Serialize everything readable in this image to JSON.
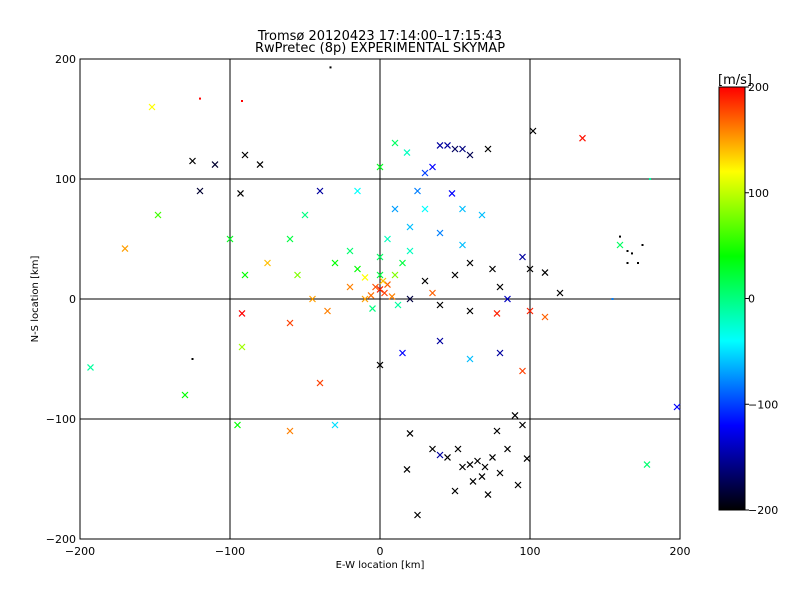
{
  "chart_data": {
    "type": "scatter",
    "title": "Tromsø 20120423 17:14:00–17:15:43",
    "subtitle": "RwPretec (8p) EXPERIMENTAL SKYMAP",
    "xlabel": "E-W location [km]",
    "ylabel": "N-S location [km]",
    "xlim": [
      -200,
      200
    ],
    "ylim": [
      -200,
      200
    ],
    "x_ticks": [
      "−200",
      "−100",
      "0",
      "100",
      "200"
    ],
    "y_ticks": [
      "−200",
      "−100",
      "0",
      "100",
      "200"
    ],
    "grid": true,
    "colorbar": {
      "unit": "[m/s]",
      "range": [
        -200,
        200
      ],
      "ticks": [
        "200",
        "100",
        "0",
        "−100",
        "−200"
      ],
      "colors": [
        "#ff0000",
        "#ffff00",
        "#00ff00",
        "#00ffff",
        "#0000ff",
        "#000000"
      ]
    },
    "point_markers": [
      "dot",
      "x"
    ],
    "points": [
      {
        "x": 0,
        "y": 8,
        "v": 190,
        "m": "x"
      },
      {
        "x": 3,
        "y": 5,
        "v": 180,
        "m": "x"
      },
      {
        "x": -3,
        "y": 10,
        "v": 175,
        "m": "x"
      },
      {
        "x": 5,
        "y": 12,
        "v": 170,
        "m": "x"
      },
      {
        "x": -6,
        "y": 3,
        "v": 165,
        "m": "x"
      },
      {
        "x": 8,
        "y": 2,
        "v": 160,
        "m": "x"
      },
      {
        "x": 2,
        "y": 15,
        "v": 140,
        "m": "x"
      },
      {
        "x": -10,
        "y": 18,
        "v": 120,
        "m": "x"
      },
      {
        "x": 10,
        "y": 20,
        "v": 80,
        "m": "x"
      },
      {
        "x": -15,
        "y": 25,
        "v": 40,
        "m": "x"
      },
      {
        "x": 15,
        "y": 30,
        "v": 20,
        "m": "x"
      },
      {
        "x": 0,
        "y": 35,
        "v": 10,
        "m": "x"
      },
      {
        "x": -20,
        "y": 40,
        "v": 5,
        "m": "x"
      },
      {
        "x": 5,
        "y": 50,
        "v": -20,
        "m": "x"
      },
      {
        "x": 20,
        "y": 60,
        "v": -60,
        "m": "x"
      },
      {
        "x": 10,
        "y": 75,
        "v": -70,
        "m": "x"
      },
      {
        "x": 25,
        "y": 90,
        "v": -80,
        "m": "x"
      },
      {
        "x": 35,
        "y": 110,
        "v": -120,
        "m": "x"
      },
      {
        "x": 40,
        "y": 128,
        "v": -150,
        "m": "x"
      },
      {
        "x": 45,
        "y": 128,
        "v": -150,
        "m": "x"
      },
      {
        "x": 50,
        "y": 125,
        "v": -170,
        "m": "x"
      },
      {
        "x": 55,
        "y": 125,
        "v": -160,
        "m": "x"
      },
      {
        "x": 60,
        "y": 120,
        "v": -175,
        "m": "x"
      },
      {
        "x": 72,
        "y": 125,
        "v": -200,
        "m": "x"
      },
      {
        "x": 102,
        "y": 140,
        "v": -200,
        "m": "x"
      },
      {
        "x": 135,
        "y": 134,
        "v": 195,
        "m": "x"
      },
      {
        "x": -152,
        "y": 160,
        "v": 120,
        "m": "x"
      },
      {
        "x": -125,
        "y": 115,
        "v": -200,
        "m": "x"
      },
      {
        "x": -110,
        "y": 112,
        "v": -185,
        "m": "x"
      },
      {
        "x": -90,
        "y": 120,
        "v": -200,
        "m": "x"
      },
      {
        "x": -80,
        "y": 112,
        "v": -200,
        "m": "x"
      },
      {
        "x": -93,
        "y": 88,
        "v": -200,
        "m": "x"
      },
      {
        "x": -120,
        "y": 90,
        "v": -185,
        "m": "x"
      },
      {
        "x": -148,
        "y": 70,
        "v": 60,
        "m": "x"
      },
      {
        "x": -170,
        "y": 42,
        "v": 150,
        "m": "x"
      },
      {
        "x": -90,
        "y": 20,
        "v": 40,
        "m": "x"
      },
      {
        "x": -75,
        "y": 30,
        "v": 140,
        "m": "x"
      },
      {
        "x": -55,
        "y": 20,
        "v": 80,
        "m": "x"
      },
      {
        "x": -45,
        "y": 0,
        "v": 150,
        "m": "x"
      },
      {
        "x": -35,
        "y": -10,
        "v": 160,
        "m": "x"
      },
      {
        "x": -92,
        "y": -12,
        "v": 200,
        "m": "x"
      },
      {
        "x": -92,
        "y": -40,
        "v": 90,
        "m": "x"
      },
      {
        "x": -40,
        "y": -70,
        "v": 180,
        "m": "x"
      },
      {
        "x": -60,
        "y": -110,
        "v": 160,
        "m": "x"
      },
      {
        "x": -95,
        "y": -105,
        "v": 40,
        "m": "x"
      },
      {
        "x": -130,
        "y": -80,
        "v": 40,
        "m": "x"
      },
      {
        "x": -193,
        "y": -57,
        "v": -10,
        "m": "x"
      },
      {
        "x": -30,
        "y": -105,
        "v": -50,
        "m": "x"
      },
      {
        "x": 0,
        "y": -55,
        "v": -200,
        "m": "x"
      },
      {
        "x": 15,
        "y": -45,
        "v": -120,
        "m": "x"
      },
      {
        "x": 40,
        "y": -35,
        "v": -150,
        "m": "x"
      },
      {
        "x": 60,
        "y": -50,
        "v": -60,
        "m": "x"
      },
      {
        "x": 80,
        "y": -45,
        "v": -150,
        "m": "x"
      },
      {
        "x": 95,
        "y": -60,
        "v": 180,
        "m": "x"
      },
      {
        "x": 110,
        "y": -15,
        "v": 170,
        "m": "x"
      },
      {
        "x": 120,
        "y": 5,
        "v": -200,
        "m": "x"
      },
      {
        "x": 100,
        "y": 25,
        "v": -200,
        "m": "x"
      },
      {
        "x": 110,
        "y": 22,
        "v": -200,
        "m": "x"
      },
      {
        "x": 95,
        "y": 35,
        "v": -150,
        "m": "x"
      },
      {
        "x": 80,
        "y": 10,
        "v": -200,
        "m": "x"
      },
      {
        "x": 75,
        "y": 25,
        "v": -200,
        "m": "x"
      },
      {
        "x": 60,
        "y": 30,
        "v": -200,
        "m": "x"
      },
      {
        "x": 50,
        "y": 20,
        "v": -200,
        "m": "x"
      },
      {
        "x": 30,
        "y": 15,
        "v": -200,
        "m": "x"
      },
      {
        "x": 20,
        "y": 0,
        "v": -180,
        "m": "x"
      },
      {
        "x": 85,
        "y": 0,
        "v": -140,
        "m": "x"
      },
      {
        "x": 78,
        "y": -12,
        "v": 190,
        "m": "x"
      },
      {
        "x": 100,
        "y": -10,
        "v": 190,
        "m": "x"
      },
      {
        "x": 60,
        "y": -10,
        "v": -200,
        "m": "x"
      },
      {
        "x": 40,
        "y": -5,
        "v": -200,
        "m": "x"
      },
      {
        "x": 35,
        "y": 5,
        "v": 170,
        "m": "x"
      },
      {
        "x": 160,
        "y": 45,
        "v": 10,
        "m": "x"
      },
      {
        "x": 178,
        "y": -138,
        "v": 5,
        "m": "x"
      },
      {
        "x": 198,
        "y": -90,
        "v": -120,
        "m": "x"
      },
      {
        "x": 20,
        "y": -112,
        "v": -200,
        "m": "x"
      },
      {
        "x": 35,
        "y": -125,
        "v": -200,
        "m": "x"
      },
      {
        "x": 40,
        "y": -130,
        "v": -150,
        "m": "x"
      },
      {
        "x": 45,
        "y": -132,
        "v": -200,
        "m": "x"
      },
      {
        "x": 52,
        "y": -125,
        "v": -200,
        "m": "x"
      },
      {
        "x": 55,
        "y": -140,
        "v": -200,
        "m": "x"
      },
      {
        "x": 60,
        "y": -138,
        "v": -200,
        "m": "x"
      },
      {
        "x": 65,
        "y": -135,
        "v": -200,
        "m": "x"
      },
      {
        "x": 70,
        "y": -140,
        "v": -200,
        "m": "x"
      },
      {
        "x": 75,
        "y": -132,
        "v": -200,
        "m": "x"
      },
      {
        "x": 68,
        "y": -148,
        "v": -200,
        "m": "x"
      },
      {
        "x": 62,
        "y": -152,
        "v": -200,
        "m": "x"
      },
      {
        "x": 80,
        "y": -145,
        "v": -200,
        "m": "x"
      },
      {
        "x": 85,
        "y": -125,
        "v": -200,
        "m": "x"
      },
      {
        "x": 78,
        "y": -110,
        "v": -200,
        "m": "x"
      },
      {
        "x": 95,
        "y": -105,
        "v": -200,
        "m": "x"
      },
      {
        "x": 90,
        "y": -97,
        "v": -200,
        "m": "x"
      },
      {
        "x": 50,
        "y": -160,
        "v": -200,
        "m": "x"
      },
      {
        "x": 72,
        "y": -163,
        "v": -200,
        "m": "x"
      },
      {
        "x": 25,
        "y": -180,
        "v": -200,
        "m": "x"
      },
      {
        "x": 18,
        "y": -142,
        "v": -200,
        "m": "x"
      },
      {
        "x": 92,
        "y": -155,
        "v": -200,
        "m": "x"
      },
      {
        "x": 98,
        "y": -133,
        "v": -200,
        "m": "x"
      },
      {
        "x": -60,
        "y": -20,
        "v": 180,
        "m": "x"
      },
      {
        "x": -20,
        "y": 10,
        "v": 160,
        "m": "x"
      },
      {
        "x": -10,
        "y": 0,
        "v": 150,
        "m": "x"
      },
      {
        "x": 12,
        "y": -5,
        "v": -10,
        "m": "x"
      },
      {
        "x": -5,
        "y": -8,
        "v": 0,
        "m": "x"
      },
      {
        "x": 0,
        "y": 20,
        "v": 20,
        "m": "x"
      },
      {
        "x": -30,
        "y": 30,
        "v": 40,
        "m": "x"
      },
      {
        "x": -100,
        "y": 50,
        "v": 30,
        "m": "x"
      },
      {
        "x": -60,
        "y": 50,
        "v": 20,
        "m": "x"
      },
      {
        "x": -50,
        "y": 70,
        "v": 0,
        "m": "x"
      },
      {
        "x": -40,
        "y": 90,
        "v": -150,
        "m": "x"
      },
      {
        "x": -15,
        "y": 90,
        "v": -40,
        "m": "x"
      },
      {
        "x": 0,
        "y": 110,
        "v": 30,
        "m": "x"
      },
      {
        "x": 10,
        "y": 130,
        "v": 10,
        "m": "x"
      },
      {
        "x": 18,
        "y": 122,
        "v": -20,
        "m": "x"
      },
      {
        "x": 30,
        "y": 105,
        "v": -100,
        "m": "x"
      },
      {
        "x": 48,
        "y": 88,
        "v": -120,
        "m": "x"
      },
      {
        "x": 55,
        "y": 75,
        "v": -60,
        "m": "x"
      },
      {
        "x": 68,
        "y": 70,
        "v": -60,
        "m": "x"
      },
      {
        "x": 30,
        "y": 75,
        "v": -40,
        "m": "x"
      },
      {
        "x": 40,
        "y": 55,
        "v": -80,
        "m": "x"
      },
      {
        "x": 55,
        "y": 45,
        "v": -60,
        "m": "x"
      },
      {
        "x": 20,
        "y": 40,
        "v": -20,
        "m": "x"
      },
      {
        "x": -125,
        "y": -50,
        "v": -200,
        "m": "dot"
      },
      {
        "x": -120,
        "y": 167,
        "v": 200,
        "m": "dot"
      },
      {
        "x": -92,
        "y": 165,
        "v": 200,
        "m": "dot"
      },
      {
        "x": -33,
        "y": 193,
        "v": -200,
        "m": "dot"
      },
      {
        "x": 165,
        "y": 40,
        "v": -200,
        "m": "dot"
      },
      {
        "x": 168,
        "y": 38,
        "v": -200,
        "m": "dot"
      },
      {
        "x": 172,
        "y": 30,
        "v": -200,
        "m": "dot"
      },
      {
        "x": 165,
        "y": 30,
        "v": -200,
        "m": "dot"
      },
      {
        "x": 160,
        "y": 52,
        "v": -200,
        "m": "dot"
      },
      {
        "x": 175,
        "y": 45,
        "v": -200,
        "m": "dot"
      },
      {
        "x": 155,
        "y": 0,
        "v": -80,
        "m": "dot"
      },
      {
        "x": 180,
        "y": 100,
        "v": -10,
        "m": "dot"
      }
    ]
  }
}
